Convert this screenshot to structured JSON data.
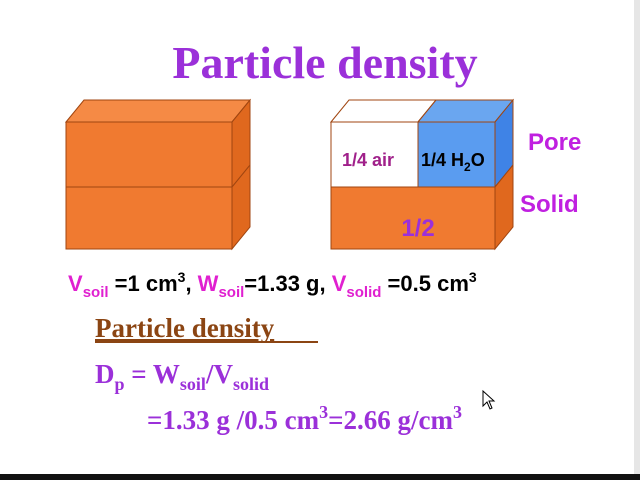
{
  "title": "Particle density",
  "diagram": {
    "air": "1/4 air",
    "water": [
      "1/4 H",
      "2",
      "O"
    ],
    "solid_fraction": "1/2",
    "pore_label": "Pore",
    "solid_label": "Solid"
  },
  "given_line": [
    "V",
    "soil",
    " =1 cm",
    "3",
    ", ",
    "W",
    "soil",
    "=1.33 g, ",
    "V",
    "solid",
    " =0.5 cm",
    "3"
  ],
  "heading": "Particle density",
  "formula": [
    "D",
    "p",
    " = W",
    "soil",
    "/V",
    "solid"
  ],
  "result": [
    "=1.33 g /0.5 cm",
    "3",
    "=2.66 g/cm",
    "3"
  ]
}
